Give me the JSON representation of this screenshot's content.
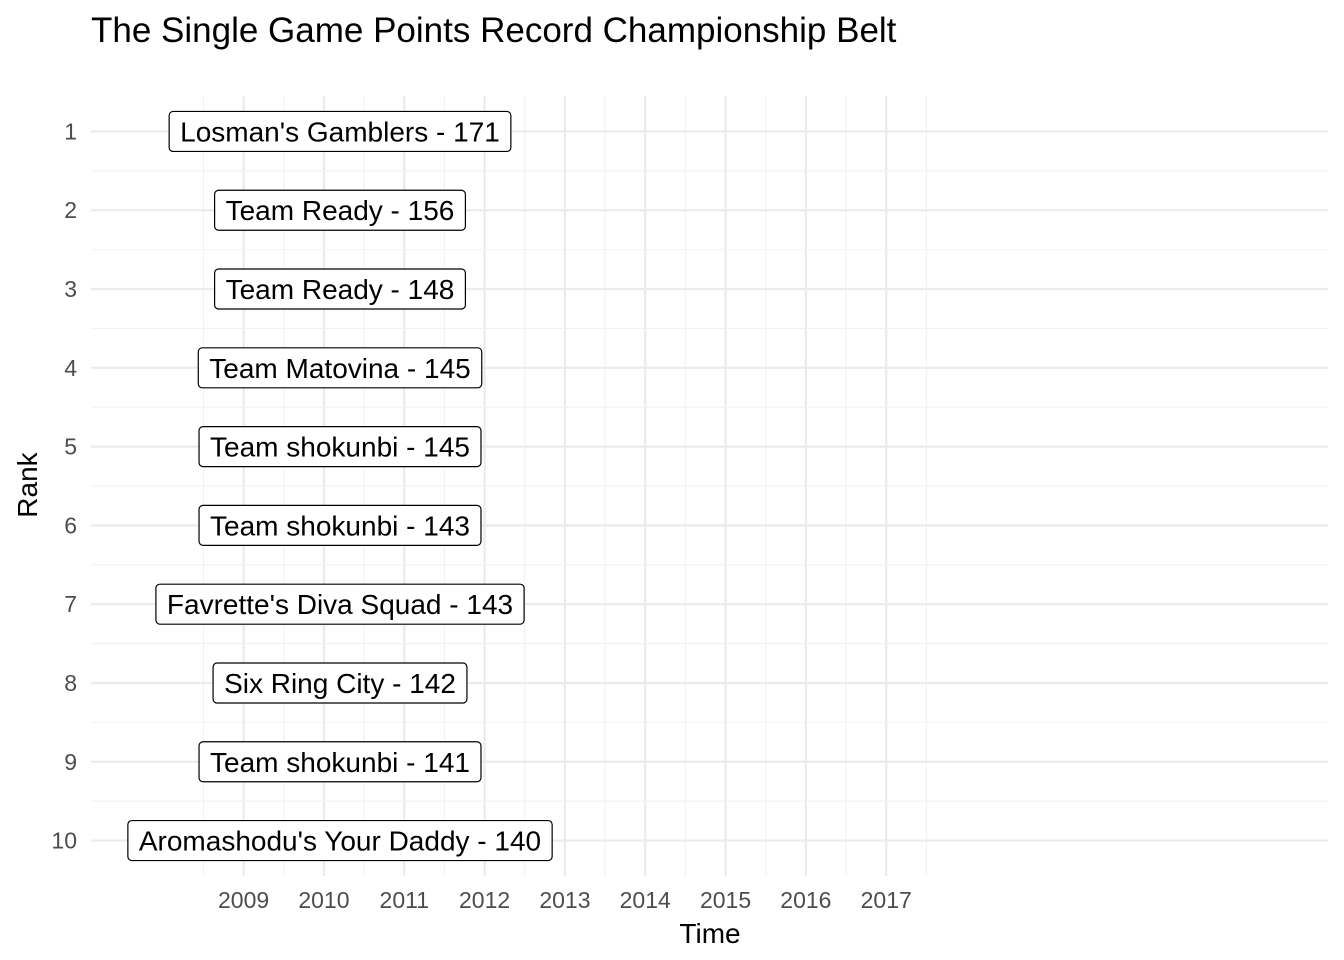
{
  "chart_data": {
    "type": "table",
    "title": "The Single Game Points Record Championship Belt",
    "xlabel": "Time",
    "ylabel": "Rank",
    "x_ticks": [
      "2009",
      "2010",
      "2011",
      "2012",
      "2013",
      "2014",
      "2015",
      "2016",
      "2017"
    ],
    "xlim": [
      2007.1,
      2022.5
    ],
    "y_ticks": [
      "1",
      "2",
      "3",
      "4",
      "5",
      "6",
      "7",
      "8",
      "9",
      "10"
    ],
    "ylim": [
      10.45,
      0.55
    ],
    "grid": true,
    "legend": "none",
    "label_x": 2010.2,
    "records": [
      {
        "rank": 1,
        "label": "Losman's Gamblers - 171"
      },
      {
        "rank": 2,
        "label": "Team Ready - 156"
      },
      {
        "rank": 3,
        "label": "Team Ready - 148"
      },
      {
        "rank": 4,
        "label": "Team Matovina - 145"
      },
      {
        "rank": 5,
        "label": "Team shokunbi - 145"
      },
      {
        "rank": 6,
        "label": "Team shokunbi - 143"
      },
      {
        "rank": 7,
        "label": "Favrette's Diva Squad - 143"
      },
      {
        "rank": 8,
        "label": "Six Ring City - 142"
      },
      {
        "rank": 9,
        "label": "Team shokunbi - 141"
      },
      {
        "rank": 10,
        "label": "Aromashodu's Your Daddy - 140"
      }
    ]
  }
}
